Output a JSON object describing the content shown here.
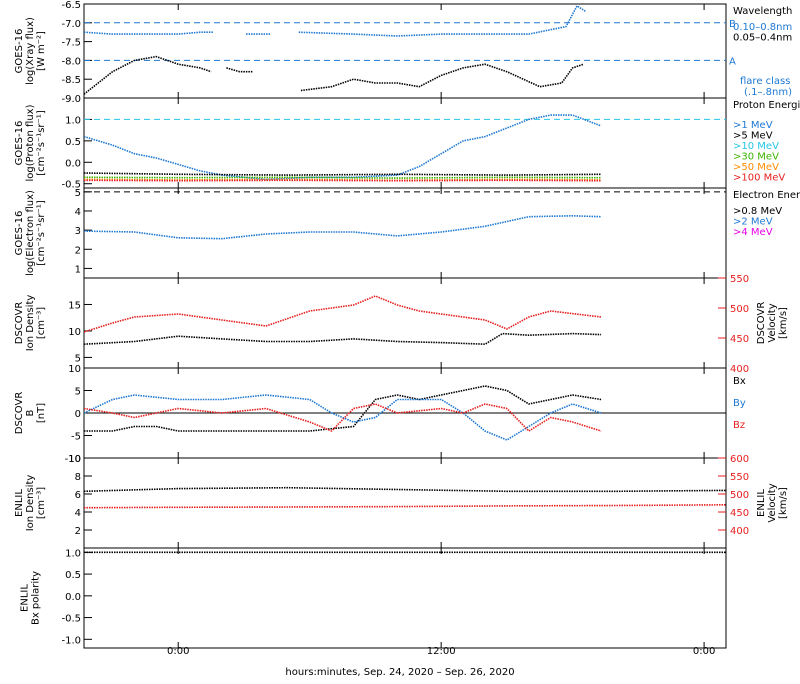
{
  "time_axis": {
    "tick_labels": [
      "0:00",
      "12:00",
      "0:00"
    ],
    "tick_hours": [
      0,
      12,
      24
    ],
    "range_hours": [
      -4.3,
      25
    ],
    "xlabel": "hours:minutes, Sep. 24, 2020 – Sep. 26, 2020"
  },
  "colors": {
    "black": "#000000",
    "blue": "#1e78d2",
    "cyan": "#23c8e6",
    "green": "#3cb400",
    "orange": "#ff8c00",
    "red": "#e61e1e",
    "magenta": "#e600e6"
  },
  "chart_data": [
    {
      "type": "line",
      "ylabel": [
        "GOES-16",
        "log(Xray flux)",
        "[W m⁻²]"
      ],
      "ylim": [
        -9.0,
        -6.5
      ],
      "yticks": [
        -9.0,
        -8.5,
        -8.0,
        -7.5,
        -7.0,
        -6.5
      ],
      "ytick_labels": [
        "-9.0",
        "-8.5",
        "-8.0",
        "-7.5",
        "-7.0",
        "-6.5"
      ],
      "legend_title": "Wavelength",
      "legend": [
        "0.10–0.8nm",
        "0.05–0.4nm"
      ],
      "legend_colors": [
        "blue",
        "black"
      ],
      "flare_class_label": "flare class",
      "flare_class_range": "(.1–.8nm)",
      "hlines": [
        {
          "label": "B",
          "y": -7.0
        },
        {
          "label": "A",
          "y": -8.0
        }
      ],
      "series": [
        {
          "color": "blue",
          "x": [
            -4.3,
            -3,
            -2,
            -1,
            0,
            1,
            1.6
          ],
          "y": [
            -7.25,
            -7.3,
            -7.3,
            -7.3,
            -7.3,
            -7.25,
            -7.25
          ]
        },
        {
          "color": "blue",
          "x": [
            3.1,
            4.2
          ],
          "y": [
            -7.3,
            -7.3
          ]
        },
        {
          "color": "blue",
          "x": [
            5.5,
            8,
            10,
            12,
            14,
            16,
            17.7,
            18.2,
            18.6
          ],
          "y": [
            -7.25,
            -7.3,
            -7.35,
            -7.3,
            -7.3,
            -7.3,
            -7.1,
            -6.55,
            -6.7
          ]
        },
        {
          "color": "black",
          "x": [
            -4.3,
            -3,
            -2,
            -1,
            0,
            1,
            1.5
          ],
          "y": [
            -8.9,
            -8.3,
            -8.0,
            -7.9,
            -8.1,
            -8.2,
            -8.3
          ]
        },
        {
          "color": "black",
          "x": [
            2.2,
            2.8,
            3.4
          ],
          "y": [
            -8.2,
            -8.3,
            -8.3
          ]
        },
        {
          "color": "black",
          "x": [
            5.6,
            7,
            8,
            9,
            10,
            11,
            12,
            13,
            14,
            15,
            16.5,
            17.5,
            18,
            18.5
          ],
          "y": [
            -8.8,
            -8.7,
            -8.5,
            -8.6,
            -8.6,
            -8.7,
            -8.4,
            -8.2,
            -8.1,
            -8.3,
            -8.7,
            -8.6,
            -8.2,
            -8.1
          ]
        }
      ]
    },
    {
      "type": "line",
      "ylabel": [
        "GOES-16",
        "log(Proton flux)",
        "[cm⁻²s⁻¹sr⁻¹]"
      ],
      "ylim": [
        -0.6,
        1.5
      ],
      "yticks": [
        -0.5,
        0.0,
        0.5,
        1.0
      ],
      "ytick_labels": [
        "-0.5",
        "0.0",
        "0.5",
        "1.0"
      ],
      "legend_title": "Proton Energies",
      "legend": [
        ">1 MeV",
        ">5 MeV",
        ">10 MeV",
        ">30 MeV",
        ">50 MeV",
        ">100 MeV"
      ],
      "legend_colors": [
        "blue",
        "black",
        "cyan",
        "green",
        "orange",
        "red"
      ],
      "hlines": [
        {
          "label": "",
          "y": 1.0
        }
      ],
      "series": [
        {
          "color": "blue",
          "x": [
            -4.3,
            -3,
            -2,
            -1,
            0,
            1,
            2,
            4,
            6,
            8,
            10,
            11,
            12,
            13,
            14,
            15,
            16,
            17,
            18,
            19.3
          ],
          "y": [
            0.6,
            0.4,
            0.2,
            0.1,
            -0.05,
            -0.2,
            -0.3,
            -0.4,
            -0.35,
            -0.35,
            -0.3,
            -0.1,
            0.2,
            0.5,
            0.6,
            0.8,
            1.0,
            1.1,
            1.1,
            0.85
          ]
        },
        {
          "color": "black",
          "x": [
            -4.3,
            0,
            5,
            10,
            15,
            19.3
          ],
          "y": [
            -0.25,
            -0.28,
            -0.3,
            -0.28,
            -0.3,
            -0.28
          ]
        },
        {
          "color": "green",
          "x": [
            -4.3,
            0,
            5,
            10,
            15,
            19.3
          ],
          "y": [
            -0.35,
            -0.36,
            -0.35,
            -0.37,
            -0.35,
            -0.36
          ]
        },
        {
          "color": "orange",
          "x": [
            -4.3,
            0,
            5,
            10,
            15,
            19.3
          ],
          "y": [
            -0.4,
            -0.41,
            -0.4,
            -0.42,
            -0.4,
            -0.41
          ]
        },
        {
          "color": "red",
          "x": [
            -4.3,
            0,
            5,
            10,
            15,
            19.3
          ],
          "y": [
            -0.42,
            -0.43,
            -0.42,
            -0.43,
            -0.42,
            -0.43
          ]
        }
      ]
    },
    {
      "type": "line",
      "ylabel": [
        "GOES-16",
        "log(Electron flux)",
        "[cm⁻²s⁻¹sr⁻¹]"
      ],
      "ylim": [
        0.5,
        5.2
      ],
      "yticks": [
        1,
        2,
        3,
        4,
        5
      ],
      "ytick_labels": [
        "1",
        "2",
        "3",
        "4",
        "5"
      ],
      "legend_title": "Electron Energies",
      "legend": [
        ">0.8 MeV",
        ">2 MeV",
        ">4 MeV"
      ],
      "legend_colors": [
        "black",
        "blue",
        "magenta"
      ],
      "hlines": [
        {
          "label": "",
          "y": 5.0
        }
      ],
      "series": [
        {
          "color": "blue",
          "x": [
            -4.3,
            -2,
            0,
            2,
            4,
            6,
            8,
            10,
            12,
            14,
            16,
            18,
            19.3
          ],
          "y": [
            2.95,
            2.9,
            2.6,
            2.55,
            2.8,
            2.9,
            2.9,
            2.7,
            2.9,
            3.2,
            3.7,
            3.75,
            3.7
          ]
        }
      ]
    },
    {
      "type": "line",
      "ylabel": [
        "DSCOVR",
        "Ion Density",
        "[cm⁻³]"
      ],
      "ylabel_right": [
        "DSCOVR",
        "Velocity",
        "[km/s]"
      ],
      "ylim": [
        3,
        20
      ],
      "yticks": [
        5,
        10,
        15
      ],
      "ytick_labels": [
        "5",
        "10",
        "15"
      ],
      "ylim_right": [
        400,
        550
      ],
      "yticks_right": [
        400,
        450,
        500,
        550
      ],
      "ytick_labels_right": [
        "400",
        "450",
        "500",
        "550"
      ],
      "series": [
        {
          "color": "black",
          "axis": "left",
          "x": [
            -4.3,
            -2,
            0,
            2,
            4,
            6,
            8,
            10,
            12,
            14,
            14.8,
            16,
            18,
            19.3
          ],
          "y": [
            7.5,
            8,
            9,
            8.5,
            8,
            8,
            8.5,
            8,
            7.8,
            7.5,
            9.5,
            9.2,
            9.5,
            9.3
          ]
        },
        {
          "color": "red",
          "axis": "right",
          "x": [
            -4.3,
            -3,
            -2,
            0,
            2,
            4,
            6,
            8,
            9,
            10,
            11,
            12,
            13,
            14,
            15,
            16,
            17,
            19.3
          ],
          "y": [
            460,
            475,
            485,
            490,
            480,
            470,
            495,
            505,
            520,
            505,
            495,
            490,
            485,
            480,
            465,
            485,
            495,
            485
          ]
        }
      ]
    },
    {
      "type": "line",
      "ylabel": [
        "DSCOVR",
        "B",
        "[nT]"
      ],
      "ylim": [
        -10,
        10
      ],
      "yticks": [
        -10,
        -5,
        0,
        5,
        10
      ],
      "ytick_labels": [
        "-10",
        "-5",
        "0",
        "5",
        "10"
      ],
      "legend": [
        "Bx",
        "By",
        "Bz"
      ],
      "legend_colors": [
        "black",
        "blue",
        "red"
      ],
      "hlines": [
        {
          "label": "",
          "y": 0
        }
      ],
      "series": [
        {
          "color": "black",
          "x": [
            -4.3,
            -3,
            -2,
            -1,
            0,
            2,
            4,
            6,
            8,
            9,
            10,
            11,
            12,
            13,
            14,
            15,
            16,
            17,
            18,
            19.3
          ],
          "y": [
            -4,
            -4,
            -3,
            -3,
            -4,
            -4,
            -4,
            -4,
            -3,
            3,
            4,
            3,
            4,
            5,
            6,
            5,
            2,
            3,
            4,
            3
          ]
        },
        {
          "color": "blue",
          "x": [
            -4.3,
            -3,
            -2,
            0,
            2,
            4,
            6,
            7,
            8,
            9,
            10,
            12,
            13,
            14,
            15,
            16,
            17,
            18,
            19.3
          ],
          "y": [
            0,
            3,
            4,
            3,
            3,
            4,
            3,
            0,
            -2,
            -1,
            3,
            3,
            0,
            -4,
            -6,
            -3,
            0,
            2,
            0
          ]
        },
        {
          "color": "red",
          "x": [
            -4.3,
            -3,
            -2,
            0,
            2,
            4,
            6,
            7,
            8,
            9,
            10,
            12,
            13,
            14,
            15,
            16,
            17,
            18,
            19.3
          ],
          "y": [
            1,
            0,
            -1,
            1,
            0,
            1,
            -2,
            -4,
            1,
            2,
            0,
            1,
            0,
            2,
            1,
            -4,
            -1,
            -2,
            -4
          ]
        }
      ]
    },
    {
      "type": "line",
      "ylabel": [
        "ENLIL",
        "Ion Density",
        "[cm⁻³]"
      ],
      "ylabel_right": [
        "ENLIL",
        "Velocity",
        "[km/s]"
      ],
      "ylim": [
        0,
        10
      ],
      "yticks": [
        2,
        4,
        6,
        8,
        10
      ],
      "ytick_labels": [
        "2",
        "4",
        "6",
        "8",
        "10"
      ],
      "ylim_right": [
        350,
        600
      ],
      "yticks_right": [
        400,
        450,
        500,
        550,
        600
      ],
      "ytick_labels_right": [
        "400",
        "450",
        "500",
        "550",
        "600"
      ],
      "series": [
        {
          "color": "black",
          "axis": "left",
          "x": [
            -4.3,
            0,
            5,
            10,
            15,
            20,
            25
          ],
          "y": [
            6.3,
            6.6,
            6.7,
            6.5,
            6.3,
            6.3,
            6.4
          ]
        },
        {
          "color": "red",
          "axis": "right",
          "x": [
            -4.3,
            0,
            5,
            10,
            15,
            20,
            25
          ],
          "y": [
            462,
            463,
            464,
            465,
            467,
            468,
            470
          ]
        }
      ]
    },
    {
      "type": "line",
      "ylabel": [
        "ENLIL",
        "Bx polarity"
      ],
      "ylim": [
        -1.2,
        1.1
      ],
      "yticks": [
        -1.0,
        -0.5,
        0.0,
        0.5,
        1.0
      ],
      "ytick_labels": [
        "-1.0",
        "-0.5",
        "0.0",
        "0.5",
        "1.0"
      ],
      "series": [
        {
          "color": "black",
          "x": [
            -4.3,
            0,
            5,
            10,
            15,
            20,
            25
          ],
          "y": [
            1,
            1,
            1,
            1,
            1,
            1,
            1
          ]
        }
      ]
    }
  ]
}
